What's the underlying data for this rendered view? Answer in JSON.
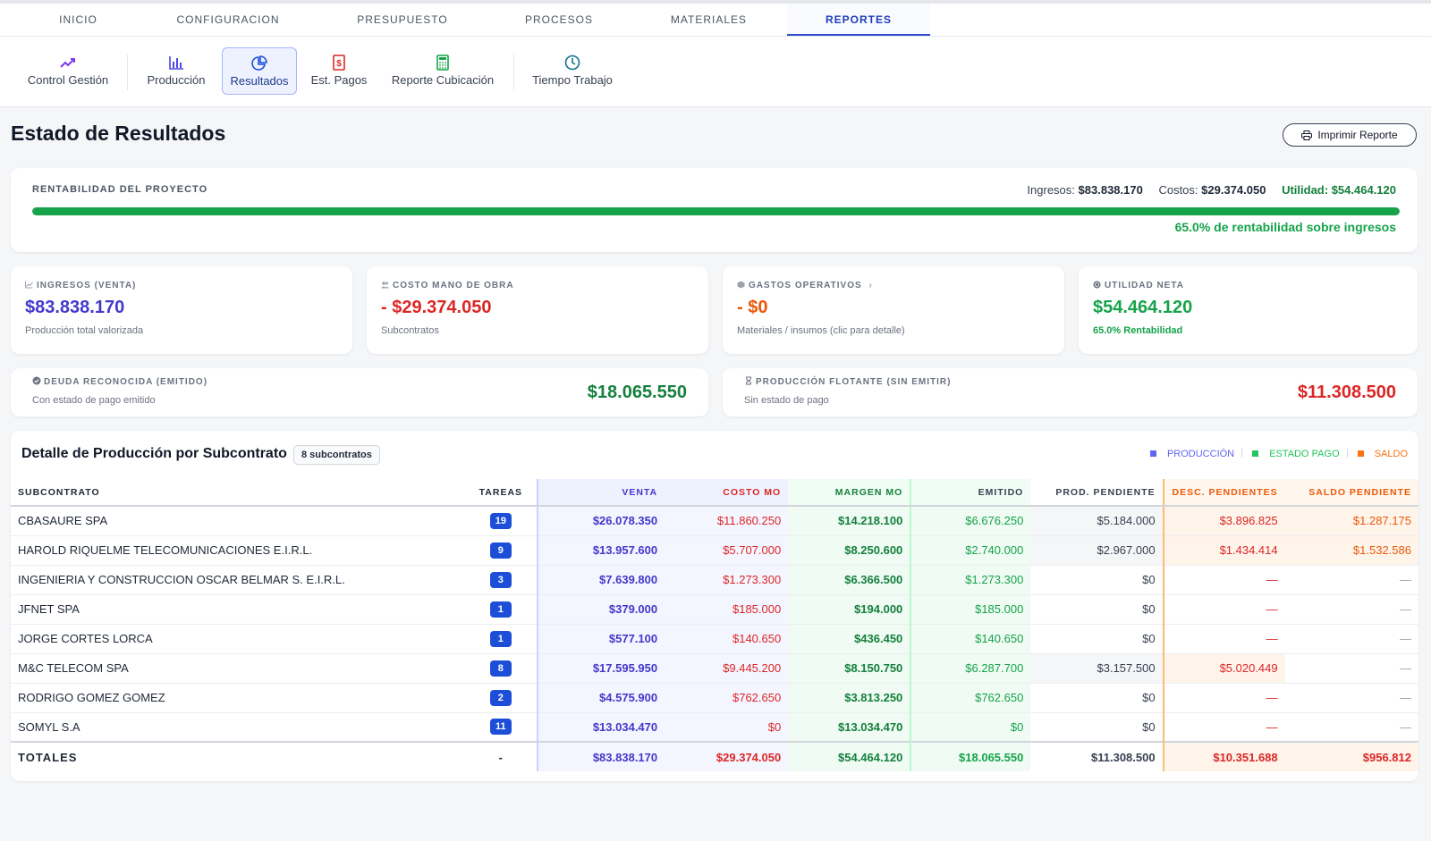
{
  "topnav": [
    {
      "label": "INICIO",
      "active": false
    },
    {
      "label": "CONFIGURACION",
      "active": false
    },
    {
      "label": "PRESUPUESTO",
      "active": false
    },
    {
      "label": "PROCESOS",
      "active": false
    },
    {
      "label": "MATERIALES",
      "active": false
    },
    {
      "label": "REPORTES",
      "active": true
    }
  ],
  "subnav": [
    {
      "label": "Control Gestión",
      "icon": "trending-up-icon",
      "color": "#7c3aed"
    },
    {
      "label": "Producción",
      "icon": "bar-chart-icon",
      "color": "#4f46e5"
    },
    {
      "label": "Resultados",
      "icon": "pie-chart-icon",
      "color": "#1d4ed8",
      "active": true
    },
    {
      "label": "Est. Pagos",
      "icon": "dollar-doc-icon",
      "color": "#dc2626"
    },
    {
      "label": "Reporte Cubicación",
      "icon": "calculator-icon",
      "color": "#16a34a"
    },
    {
      "label": "Tiempo Trabajo",
      "icon": "clock-icon",
      "color": "#0e7490"
    }
  ],
  "page": {
    "title": "Estado de Resultados",
    "print_label": "Imprimir Reporte"
  },
  "rentabilidad": {
    "label": "RENTABILIDAD DEL PROYECTO",
    "ingresos_label": "Ingresos:",
    "ingresos": "$83.838.170",
    "costos_label": "Costos:",
    "costos": "$29.374.050",
    "utilidad_label": "Utilidad:",
    "utilidad": "$54.464.120",
    "percent": 65.0,
    "percent_text": "65.0% de rentabilidad sobre ingresos"
  },
  "kpis": [
    {
      "label": "INGRESOS (VENTA)",
      "value": "$83.838.170",
      "sub": "Producción total valorizada",
      "color": "#4338ca",
      "icon": "trend-icon"
    },
    {
      "label": "COSTO MANO DE OBRA",
      "value": "- $29.374.050",
      "sub": "Subcontratos",
      "color": "#dc2626",
      "icon": "users-icon"
    },
    {
      "label": "GASTOS OPERATIVOS",
      "value": "- $0",
      "sub": "Materiales / insumos (clic para detalle)",
      "color": "#ea580c",
      "icon": "box-icon"
    },
    {
      "label": "UTILIDAD NETA",
      "value": "$54.464.120",
      "sub": "65.0% Rentabilidad",
      "color": "#16a34a",
      "icon": "coin-icon"
    }
  ],
  "deuda": {
    "label": "DEUDA RECONOCIDA (EMITIDO)",
    "sub": "Con estado de pago emitido",
    "value": "$18.065.550",
    "color": "#15803d"
  },
  "flotante": {
    "label": "PRODUCCIÓN FLOTANTE (SIN EMITIR)",
    "sub": "Sin estado de pago",
    "value": "$11.308.500",
    "color": "#dc2626"
  },
  "detalle": {
    "title": "Detalle de Producción por Subcontrato",
    "badge": "8 subcontratos",
    "legend": [
      {
        "label": "PRODUCCIÓN",
        "color": "#6366f1"
      },
      {
        "label": "ESTADO PAGO",
        "color": "#22c55e"
      },
      {
        "label": "SALDO",
        "color": "#f97316"
      }
    ],
    "headers": [
      "SUBCONTRATO",
      "TAREAS",
      "VENTA",
      "COSTO MO",
      "MARGEN MO",
      "EMITIDO",
      "PROD. PENDIENTE",
      "DESC. PENDIENTES",
      "SALDO PENDIENTE"
    ],
    "rows": [
      {
        "name": "CBASAURE SPA",
        "tareas": "19",
        "venta": "$26.078.350",
        "costo": "$11.860.250",
        "margen": "$14.218.100",
        "emitido": "$6.676.250",
        "pend": "$5.184.000",
        "desc": "$3.896.825",
        "saldo": "$1.287.175"
      },
      {
        "name": "HAROLD RIQUELME TELECOMUNICACIONES E.I.R.L.",
        "tareas": "9",
        "venta": "$13.957.600",
        "costo": "$5.707.000",
        "margen": "$8.250.600",
        "emitido": "$2.740.000",
        "pend": "$2.967.000",
        "desc": "$1.434.414",
        "saldo": "$1.532.586"
      },
      {
        "name": "INGENIERIA Y CONSTRUCCION OSCAR BELMAR S. E.I.R.L.",
        "tareas": "3",
        "venta": "$7.639.800",
        "costo": "$1.273.300",
        "margen": "$6.366.500",
        "emitido": "$1.273.300",
        "pend": "$0",
        "desc": "—",
        "saldo": "—"
      },
      {
        "name": "JFNET SPA",
        "tareas": "1",
        "venta": "$379.000",
        "costo": "$185.000",
        "margen": "$194.000",
        "emitido": "$185.000",
        "pend": "$0",
        "desc": "—",
        "saldo": "—"
      },
      {
        "name": "JORGE CORTES LORCA",
        "tareas": "1",
        "venta": "$577.100",
        "costo": "$140.650",
        "margen": "$436.450",
        "emitido": "$140.650",
        "pend": "$0",
        "desc": "—",
        "saldo": "—"
      },
      {
        "name": "M&C TELECOM SPA",
        "tareas": "8",
        "venta": "$17.595.950",
        "costo": "$9.445.200",
        "margen": "$8.150.750",
        "emitido": "$6.287.700",
        "pend": "$3.157.500",
        "desc": "$5.020.449",
        "saldo": "—"
      },
      {
        "name": "RODRIGO GOMEZ GOMEZ",
        "tareas": "2",
        "venta": "$4.575.900",
        "costo": "$762.650",
        "margen": "$3.813.250",
        "emitido": "$762.650",
        "pend": "$0",
        "desc": "—",
        "saldo": "—"
      },
      {
        "name": "SOMYL S.A",
        "tareas": "11",
        "venta": "$13.034.470",
        "costo": "$0",
        "margen": "$13.034.470",
        "emitido": "$0",
        "pend": "$0",
        "desc": "—",
        "saldo": "—"
      }
    ],
    "totals": {
      "name": "TOTALES",
      "tareas": "-",
      "venta": "$83.838.170",
      "costo": "$29.374.050",
      "margen": "$54.464.120",
      "emitido": "$18.065.550",
      "pend": "$11.308.500",
      "desc": "$10.351.688",
      "saldo": "$956.812"
    }
  }
}
